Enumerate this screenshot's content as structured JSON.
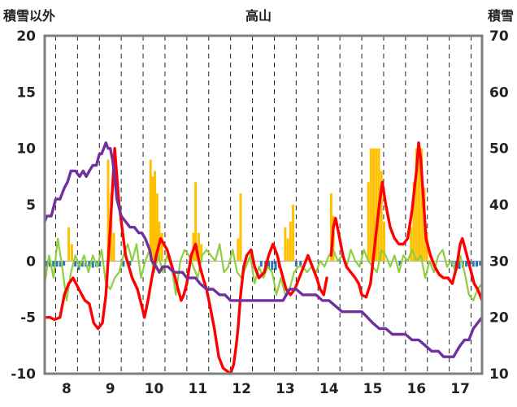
{
  "chart_data": {
    "type": "line",
    "title": "高山",
    "y_left_label": "積雪以外",
    "y_right_label": "積雪",
    "y_left_ticks": [
      "20",
      "15",
      "10",
      "5",
      "0",
      "-5",
      "-10"
    ],
    "y_right_ticks": [
      "70",
      "60",
      "50",
      "40",
      "30",
      "20",
      "10"
    ],
    "x_ticks": [
      "8",
      "9",
      "10",
      "11",
      "12",
      "13",
      "14",
      "15",
      "16",
      "17"
    ],
    "ylim_left": [
      -10,
      20
    ],
    "ylim_right": [
      10,
      70
    ],
    "xlim": [
      7.5,
      17.5
    ],
    "grid": "vertical dashed lines at each day boundary and at every integer day",
    "colors": {
      "red": "#ff0000",
      "green": "#8fce3f",
      "purple": "#7030a0",
      "orange": "#ffc000",
      "blue": "#2e75b6",
      "frame": "#7f7f7f"
    },
    "series": [
      {
        "color_key": "red",
        "axis": "left",
        "x": [
          7.5,
          7.62,
          7.72,
          7.85,
          7.95,
          8.05,
          8.15,
          8.28,
          8.42,
          8.52,
          8.62,
          8.72,
          8.82,
          8.9,
          8.95,
          9.0,
          9.1,
          9.2,
          9.35,
          9.5,
          9.62,
          9.72,
          9.78,
          9.86,
          9.95,
          10.05,
          10.15,
          10.3,
          10.45,
          10.55,
          10.62,
          10.68,
          10.75,
          10.85,
          10.95,
          11.05,
          11.12,
          11.2,
          11.28,
          11.38,
          11.48,
          11.58,
          11.68,
          11.75,
          11.82,
          11.88,
          11.92,
          11.98,
          12.05,
          12.12,
          12.22,
          12.3,
          12.4,
          12.52,
          12.62,
          12.72,
          12.82,
          12.88,
          12.95,
          13.02,
          13.12,
          13.22,
          13.32,
          13.42,
          13.52,
          13.62,
          13.72,
          13.8,
          13.88,
          13.95
        ],
        "y": [
          -5.0,
          -5.0,
          -5.2,
          -5.0,
          -3.0,
          -2.0,
          -1.5,
          -2.5,
          -3.5,
          -3.8,
          -5.5,
          -6.0,
          -5.5,
          -3.0,
          0,
          3.0,
          10.0,
          5.0,
          0.5,
          -1.5,
          -2.5,
          -4.0,
          -5.0,
          -3.5,
          -1.5,
          0.5,
          2.0,
          1.0,
          -1.0,
          -2.5,
          -3.5,
          -3.0,
          -2.0,
          0.5,
          1.5,
          -0.5,
          -1.5,
          -2.5,
          -4.0,
          -6.0,
          -8.5,
          -9.5,
          -9.8,
          -10.0,
          -9.2,
          -7.5,
          -6.0,
          -3.0,
          -0.5,
          0.5,
          1.0,
          -0.5,
          -1.5,
          -1.0,
          0.5,
          1.5,
          0.5,
          -0.5,
          -1.5,
          -2.5,
          -3.0,
          -2.5,
          -1.5,
          -0.5,
          0.5,
          -0.5,
          -1.5,
          -2.5,
          -3.0,
          -1.5
        ]
      },
      {
        "color_key": "red",
        "axis": "left",
        "x": [
          14.05,
          14.1,
          14.15,
          14.22,
          14.32,
          14.4,
          14.5,
          14.6,
          14.68,
          14.75,
          14.85,
          14.95,
          15.05,
          15.15,
          15.22,
          15.3,
          15.4,
          15.5,
          15.6,
          15.7,
          15.8,
          15.9,
          16.0,
          16.05,
          16.1,
          16.15,
          16.22,
          16.32,
          16.42,
          16.52,
          16.62,
          16.72,
          16.82,
          16.92,
          17.0,
          17.05,
          17.12,
          17.22,
          17.32,
          17.4,
          17.5
        ],
        "y": [
          0.5,
          3.0,
          3.8,
          2.5,
          0.5,
          -0.5,
          -1.0,
          -1.5,
          -2.0,
          -3.0,
          -3.2,
          -2.0,
          1.5,
          5.0,
          7.0,
          5.0,
          3.0,
          2.0,
          1.5,
          1.5,
          2.0,
          4.5,
          8.0,
          10.5,
          9.0,
          6.0,
          2.0,
          0.5,
          -0.5,
          -1.2,
          -1.5,
          -1.5,
          -2.0,
          -0.5,
          1.5,
          2.0,
          1.0,
          -0.5,
          -2.0,
          -2.5,
          -3.5
        ]
      },
      {
        "color_key": "green",
        "axis": "left",
        "x": [
          7.5,
          7.6,
          7.7,
          7.8,
          7.9,
          8.0,
          8.1,
          8.2,
          8.3,
          8.4,
          8.5,
          8.6,
          8.7,
          8.8,
          8.9,
          9.0,
          9.1,
          9.2,
          9.3,
          9.4,
          9.5,
          9.6,
          9.7,
          9.8,
          9.9,
          10.0,
          10.1,
          10.2,
          10.3,
          10.4,
          10.5,
          10.6,
          10.7,
          10.8,
          10.9,
          11.0,
          11.1,
          11.2,
          11.3,
          11.4,
          11.5,
          11.6,
          11.7,
          11.8,
          11.9,
          12.0,
          12.1,
          12.2,
          12.3,
          12.4,
          12.5,
          12.6,
          12.7,
          12.8,
          12.9,
          13.0,
          13.1,
          13.2,
          13.3,
          13.4,
          13.5,
          13.6,
          13.7,
          13.8,
          13.9,
          14.0,
          14.1,
          14.2,
          14.3,
          14.4,
          14.5,
          14.6,
          14.7,
          14.8,
          14.9,
          15.0,
          15.1,
          15.2,
          15.3,
          15.4,
          15.5,
          15.6,
          15.7,
          15.8,
          15.9,
          16.0,
          16.1,
          16.2,
          16.3,
          16.4,
          16.5,
          16.6,
          16.7,
          16.8,
          16.9,
          17.0,
          17.1,
          17.2,
          17.3,
          17.4,
          17.5
        ],
        "y": [
          -2.0,
          0.5,
          -1.5,
          2.0,
          -0.5,
          -3.5,
          -1.0,
          0.5,
          -0.5,
          0.5,
          -1.0,
          0.5,
          -0.5,
          1.0,
          -2.0,
          -2.5,
          -1.5,
          -1.0,
          0.5,
          1.5,
          0.0,
          1.5,
          -1.5,
          0.0,
          1.0,
          -1.0,
          0.5,
          -1.0,
          0.5,
          -0.5,
          -3.0,
          0.0,
          1.0,
          0.5,
          -0.5,
          -1.5,
          0.5,
          1.0,
          0.5,
          0.0,
          1.5,
          -1.0,
          -0.5,
          1.0,
          -1.0,
          -1.5,
          -0.5,
          0.5,
          -2.0,
          -0.5,
          -1.5,
          -0.5,
          -1.0,
          -3.0,
          -1.5,
          -3.0,
          -2.5,
          -1.0,
          -0.5,
          -0.5,
          -1.0,
          -0.5,
          -1.0,
          0.0,
          -0.5,
          0.5,
          1.0,
          0.0,
          0.5,
          -0.5,
          1.0,
          0.0,
          -0.5,
          1.0,
          0.0,
          -0.5,
          -1.0,
          1.0,
          0.5,
          -0.5,
          0.5,
          -1.0,
          0.5,
          0.0,
          1.0,
          0.0,
          0.5,
          -1.5,
          0.0,
          -1.0,
          0.5,
          1.0,
          -0.5,
          0.0,
          -1.0,
          0.5,
          -1.0,
          -3.0,
          -3.5,
          -2.5,
          -2.0
        ]
      },
      {
        "color_key": "purple",
        "axis": "right",
        "x": [
          7.5,
          7.55,
          7.65,
          7.75,
          7.85,
          7.95,
          8.02,
          8.1,
          8.2,
          8.3,
          8.38,
          8.45,
          8.52,
          8.6,
          8.68,
          8.75,
          8.8,
          8.85,
          8.9,
          8.95,
          9.0,
          9.05,
          9.1,
          9.15,
          9.25,
          9.35,
          9.45,
          9.55,
          9.65,
          9.72,
          9.8,
          9.9,
          9.95,
          10.05,
          10.12,
          10.2,
          10.32,
          10.45,
          10.55,
          10.65,
          10.75,
          10.85,
          10.95,
          11.05,
          11.2,
          11.35,
          11.5,
          11.62,
          11.75,
          11.9,
          12.05,
          12.2,
          12.35,
          12.5,
          12.65,
          12.8,
          12.95,
          13.1,
          13.25,
          13.4,
          13.55,
          13.7,
          13.85,
          14.0,
          14.15,
          14.3,
          14.45,
          14.6,
          14.75,
          14.88,
          15.0,
          15.15,
          15.3,
          15.45,
          15.6,
          15.75,
          15.9,
          16.05,
          16.2,
          16.35,
          16.5,
          16.62,
          16.75,
          16.85,
          16.92,
          17.0,
          17.1,
          17.2,
          17.3,
          17.4,
          17.5
        ],
        "y": [
          37,
          38,
          38,
          41,
          41,
          43,
          44,
          46,
          46,
          45,
          46,
          45,
          46,
          47,
          47,
          49,
          49,
          50,
          51,
          50,
          50,
          48,
          45,
          41,
          38,
          37,
          36,
          36,
          35,
          35,
          34,
          32,
          30,
          29,
          28,
          29,
          29,
          28,
          28,
          28,
          27,
          27,
          27,
          26,
          25,
          25,
          24,
          24,
          23,
          23,
          23,
          23,
          23,
          23,
          23,
          23,
          23,
          25,
          25,
          24,
          24,
          24,
          23,
          23,
          22,
          21,
          21,
          21,
          21,
          20,
          19,
          18,
          18,
          17,
          17,
          17,
          16,
          16,
          15,
          14,
          14,
          13,
          13,
          13,
          14,
          15,
          16,
          16,
          18,
          19,
          20
        ]
      }
    ],
    "bars_orange": [
      {
        "x": 8.05,
        "y": 3.0
      },
      {
        "x": 8.12,
        "y": 1.5
      },
      {
        "x": 8.95,
        "y": 9.0
      },
      {
        "x": 9.02,
        "y": 6.0
      },
      {
        "x": 9.08,
        "y": 2.5
      },
      {
        "x": 9.92,
        "y": 9.0
      },
      {
        "x": 9.97,
        "y": 7.5
      },
      {
        "x": 10.02,
        "y": 8.0
      },
      {
        "x": 10.07,
        "y": 6.0
      },
      {
        "x": 10.12,
        "y": 3.5
      },
      {
        "x": 10.18,
        "y": 2.5
      },
      {
        "x": 10.9,
        "y": 2.5
      },
      {
        "x": 10.95,
        "y": 7.0
      },
      {
        "x": 11.02,
        "y": 2.5
      },
      {
        "x": 11.08,
        "y": 1.5
      },
      {
        "x": 11.92,
        "y": 2.0
      },
      {
        "x": 11.98,
        "y": 6.0
      },
      {
        "x": 13.0,
        "y": 3.0
      },
      {
        "x": 13.06,
        "y": 2.0
      },
      {
        "x": 13.12,
        "y": 3.5
      },
      {
        "x": 13.18,
        "y": 5.0
      },
      {
        "x": 14.05,
        "y": 6.0
      },
      {
        "x": 14.1,
        "y": 4.0
      },
      {
        "x": 14.9,
        "y": 7.0
      },
      {
        "x": 14.96,
        "y": 10.0
      },
      {
        "x": 15.02,
        "y": 10.0
      },
      {
        "x": 15.08,
        "y": 10.0
      },
      {
        "x": 15.14,
        "y": 10.0
      },
      {
        "x": 15.2,
        "y": 8.0
      },
      {
        "x": 15.26,
        "y": 3.5
      },
      {
        "x": 15.88,
        "y": 3.0
      },
      {
        "x": 15.94,
        "y": 7.0
      },
      {
        "x": 16.0,
        "y": 10.0
      },
      {
        "x": 16.06,
        "y": 10.0
      },
      {
        "x": 16.12,
        "y": 10.0
      },
      {
        "x": 16.18,
        "y": 6.5
      },
      {
        "x": 16.24,
        "y": 2.5
      }
    ],
    "bars_blue": [
      {
        "x": 7.55,
        "y": -0.5
      },
      {
        "x": 7.62,
        "y": -0.5
      },
      {
        "x": 7.7,
        "y": -0.5
      },
      {
        "x": 7.78,
        "y": -0.5
      },
      {
        "x": 7.86,
        "y": -0.5
      },
      {
        "x": 7.94,
        "y": -0.4
      },
      {
        "x": 8.2,
        "y": -0.5
      },
      {
        "x": 8.28,
        "y": -0.8
      },
      {
        "x": 8.36,
        "y": -0.5
      },
      {
        "x": 8.44,
        "y": -0.5
      },
      {
        "x": 8.52,
        "y": -0.5
      },
      {
        "x": 8.6,
        "y": -0.6
      },
      {
        "x": 8.68,
        "y": -0.5
      },
      {
        "x": 8.76,
        "y": -0.5
      },
      {
        "x": 9.3,
        "y": -0.5
      },
      {
        "x": 9.45,
        "y": -0.4
      },
      {
        "x": 12.45,
        "y": -0.5
      },
      {
        "x": 12.55,
        "y": -0.6
      },
      {
        "x": 12.62,
        "y": -0.7
      },
      {
        "x": 12.7,
        "y": -0.8
      },
      {
        "x": 12.78,
        "y": -0.8
      },
      {
        "x": 12.86,
        "y": -0.6
      },
      {
        "x": 13.25,
        "y": -0.5
      },
      {
        "x": 13.35,
        "y": -0.4
      },
      {
        "x": 15.62,
        "y": -0.4
      },
      {
        "x": 16.82,
        "y": -0.5
      },
      {
        "x": 16.9,
        "y": -0.6
      },
      {
        "x": 16.98,
        "y": -0.7
      },
      {
        "x": 17.06,
        "y": -0.6
      },
      {
        "x": 17.14,
        "y": -0.5
      },
      {
        "x": 17.22,
        "y": -0.5
      },
      {
        "x": 17.3,
        "y": -0.5
      },
      {
        "x": 17.38,
        "y": -0.5
      },
      {
        "x": 17.46,
        "y": -0.4
      }
    ]
  }
}
